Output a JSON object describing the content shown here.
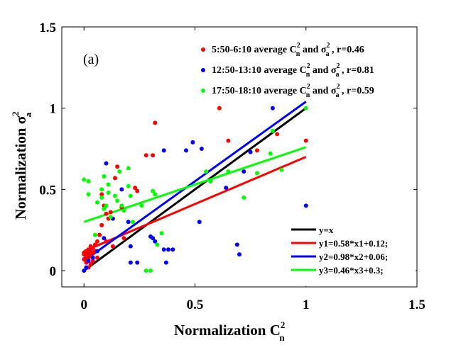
{
  "chart_data": {
    "type": "scatter",
    "panel_label": "(a)",
    "xlabel": {
      "base": "Normalization C",
      "sup": "2",
      "sub": "n"
    },
    "ylabel": {
      "base": "Normalization σ",
      "sup": "2",
      "sub": "a"
    },
    "xlim": [
      -0.1,
      1.5
    ],
    "ylim": [
      -0.1,
      1.5
    ],
    "xticks": [
      0,
      0.5,
      1,
      1.5
    ],
    "yticks": [
      0,
      0.5,
      1,
      1.5
    ],
    "xticklabels": [
      "0",
      "0.5",
      "1",
      "1.5"
    ],
    "yticklabels": [
      "0",
      "0.5",
      "1",
      "1.5"
    ],
    "grid": false,
    "series": [
      {
        "name": "5:50-6:10 average C n 2 and σ a 2 , r=0.46",
        "legend": {
          "prefix": "5:50-6:10 average C",
          "var2": "σ",
          "suffix": " , r=0.46"
        },
        "color": "#ff0000",
        "points": [
          [
            0.0,
            0.1
          ],
          [
            0.0,
            0.11
          ],
          [
            0.01,
            0.08
          ],
          [
            0.01,
            0.1
          ],
          [
            0.01,
            0.12
          ],
          [
            0.02,
            0.07
          ],
          [
            0.02,
            0.1
          ],
          [
            0.02,
            0.11
          ],
          [
            0.02,
            0.13
          ],
          [
            0.03,
            0.09
          ],
          [
            0.03,
            0.12
          ],
          [
            0.03,
            0.15
          ],
          [
            0.04,
            0.11
          ],
          [
            0.04,
            0.14
          ],
          [
            0.05,
            0.12
          ],
          [
            0.05,
            0.16
          ],
          [
            0.06,
            0.18
          ],
          [
            0.06,
            0.08
          ],
          [
            0.07,
            0.22
          ],
          [
            0.08,
            0.28
          ],
          [
            0.08,
            0.47
          ],
          [
            0.09,
            0.4
          ],
          [
            0.1,
            0.35
          ],
          [
            0.1,
            0.18
          ],
          [
            0.11,
            0.32
          ],
          [
            0.12,
            0.36
          ],
          [
            0.13,
            0.15
          ],
          [
            0.14,
            0.57
          ],
          [
            0.15,
            0.64
          ],
          [
            0.17,
            0.39
          ],
          [
            0.18,
            0.2
          ],
          [
            0.02,
            0.02
          ],
          [
            0.03,
            0.04
          ],
          [
            0.04,
            0.06
          ],
          [
            0.23,
            0.51
          ],
          [
            0.24,
            0.49
          ],
          [
            0.28,
            0.71
          ],
          [
            0.31,
            0.71
          ],
          [
            0.32,
            0.91
          ],
          [
            0.61,
            1.0
          ],
          [
            0.65,
            0.8
          ],
          [
            0.78,
            0.74
          ],
          [
            0.87,
            0.84
          ],
          [
            1.0,
            0.8
          ],
          [
            0.0,
            0.07
          ],
          [
            0.01,
            0.05
          ]
        ]
      },
      {
        "name": "12:50-13:10 average C n 2 and σ a 2 , r=0.81",
        "legend": {
          "prefix": "12:50-13:10 average C",
          "var2": "σ",
          "suffix": " , r=0.81"
        },
        "color": "#0000ff",
        "points": [
          [
            0.0,
            0.0
          ],
          [
            0.01,
            0.02
          ],
          [
            0.02,
            0.06
          ],
          [
            0.04,
            0.08
          ],
          [
            0.06,
            0.12
          ],
          [
            0.09,
            0.2
          ],
          [
            0.1,
            0.66
          ],
          [
            0.13,
            0.32
          ],
          [
            0.17,
            0.5
          ],
          [
            0.2,
            0.3
          ],
          [
            0.21,
            0.15
          ],
          [
            0.21,
            0.05
          ],
          [
            0.24,
            0.05
          ],
          [
            0.3,
            0.21
          ],
          [
            0.31,
            0.2
          ],
          [
            0.32,
            0.18
          ],
          [
            0.36,
            0.74
          ],
          [
            0.36,
            0.13
          ],
          [
            0.37,
            0.05
          ],
          [
            0.38,
            0.13
          ],
          [
            0.4,
            0.13
          ],
          [
            0.46,
            0.74
          ],
          [
            0.49,
            0.79
          ],
          [
            0.52,
            0.3
          ],
          [
            0.53,
            0.75
          ],
          [
            0.57,
            0.55
          ],
          [
            0.64,
            0.51
          ],
          [
            0.69,
            0.16
          ],
          [
            0.7,
            0.1
          ],
          [
            0.72,
            0.61
          ],
          [
            0.75,
            0.73
          ],
          [
            0.85,
            1.0
          ],
          [
            1.0,
            0.4
          ]
        ]
      },
      {
        "name": "17:50-18:10 average C n 2 and σ a 2 , r=0.59",
        "legend": {
          "prefix": "17:50-18:10 average C",
          "var2": "σ",
          "suffix": " , r=0.59"
        },
        "color": "#00ff00",
        "points": [
          [
            0.0,
            0.56
          ],
          [
            0.02,
            0.55
          ],
          [
            0.02,
            0.47
          ],
          [
            0.05,
            0.22
          ],
          [
            0.06,
            0.42
          ],
          [
            0.08,
            0.45
          ],
          [
            0.08,
            0.5
          ],
          [
            0.09,
            0.38
          ],
          [
            0.09,
            0.58
          ],
          [
            0.1,
            0.4
          ],
          [
            0.11,
            0.48
          ],
          [
            0.11,
            0.53
          ],
          [
            0.12,
            0.33
          ],
          [
            0.14,
            0.46
          ],
          [
            0.15,
            0.43
          ],
          [
            0.16,
            0.61
          ],
          [
            0.17,
            0.4
          ],
          [
            0.18,
            0.37
          ],
          [
            0.2,
            0.63
          ],
          [
            0.2,
            0.52
          ],
          [
            0.21,
            0.46
          ],
          [
            0.22,
            0.3
          ],
          [
            0.26,
            0.4
          ],
          [
            0.28,
            0.0
          ],
          [
            0.3,
            0.0
          ],
          [
            0.31,
            0.49
          ],
          [
            0.32,
            0.47
          ],
          [
            0.33,
            0.16
          ],
          [
            0.35,
            0.23
          ],
          [
            0.55,
            0.61
          ],
          [
            0.57,
            0.55
          ],
          [
            0.65,
            0.61
          ],
          [
            0.72,
            0.45
          ],
          [
            0.78,
            0.6
          ],
          [
            0.84,
            0.72
          ],
          [
            0.85,
            0.86
          ],
          [
            0.89,
            0.62
          ],
          [
            1.0,
            1.0
          ]
        ]
      }
    ],
    "lines": [
      {
        "name": "y=x",
        "color": "#000000",
        "slope": 1.0,
        "intercept": 0.0,
        "x_range": [
          0,
          1
        ]
      },
      {
        "name": "y1=0.58*x1+0.12;",
        "color": "#ff0000",
        "slope": 0.58,
        "intercept": 0.12,
        "x_range": [
          0,
          1
        ]
      },
      {
        "name": "y2=0.98*x2+0.06;",
        "color": "#0000ff",
        "slope": 0.98,
        "intercept": 0.06,
        "x_range": [
          0,
          1
        ]
      },
      {
        "name": "y3=0.46*x3+0.3;",
        "color": "#00ff00",
        "slope": 0.46,
        "intercept": 0.3,
        "x_range": [
          0,
          1
        ]
      }
    ]
  }
}
